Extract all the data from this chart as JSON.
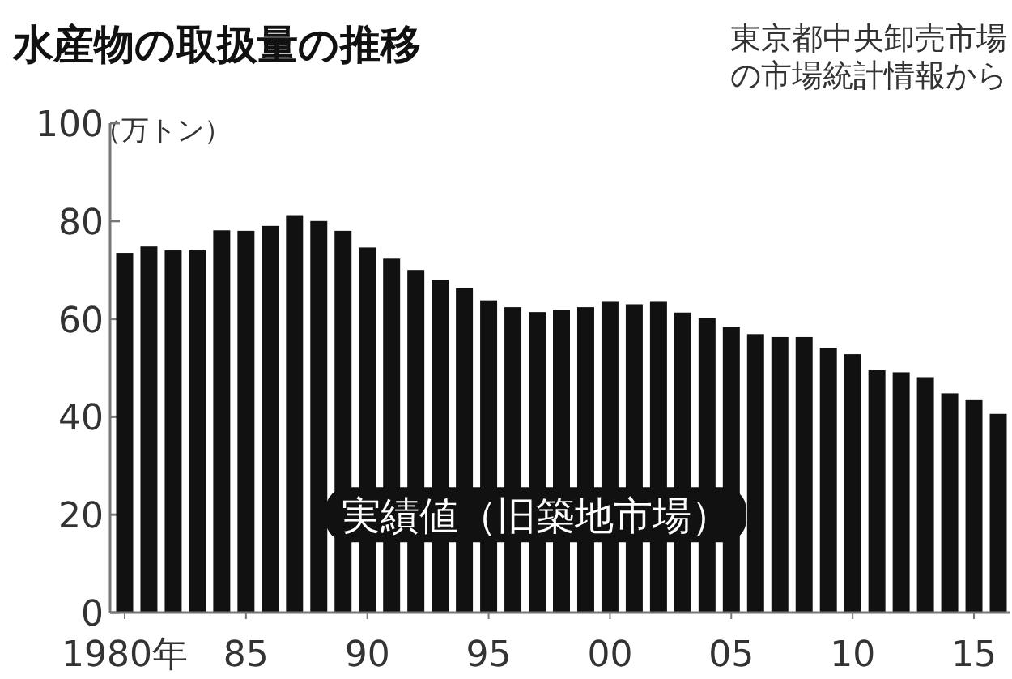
{
  "chart_data": {
    "type": "bar",
    "title": "水産物の取扱量の推移",
    "subtitle": "東京都中央卸売市場の市場統計情報から",
    "ylabel": "（万トン）",
    "color": "#111111",
    "grid": false,
    "annotations": [
      "実績値（旧築地市場）"
    ],
    "x": [
      1980,
      1981,
      1982,
      1983,
      1984,
      1985,
      1986,
      1987,
      1988,
      1989,
      1990,
      1991,
      1992,
      1993,
      1994,
      1995,
      1996,
      1997,
      1998,
      1999,
      2000,
      2001,
      2002,
      2003,
      2004,
      2005,
      2006,
      2007,
      2008,
      2009,
      2010,
      2011,
      2012,
      2013,
      2014,
      2015,
      2016
    ],
    "values": [
      73.5,
      74.8,
      74,
      74,
      78.1,
      78,
      79,
      81.2,
      80,
      78,
      74.6,
      72.3,
      70,
      68,
      66.3,
      63.8,
      62.4,
      61.4,
      61.8,
      62.4,
      63.5,
      63,
      63.5,
      61.3,
      60.2,
      58.3,
      56.9,
      56.3,
      56.3,
      54.1,
      52.8,
      49.5,
      49.1,
      48.1,
      44.8,
      43.4,
      40.6
    ],
    "xlim": [
      1979.4,
      2016.5
    ],
    "xticks": [
      {
        "value": 1980,
        "label": "1980年"
      },
      {
        "value": 1985,
        "label": "85"
      },
      {
        "value": 1990,
        "label": "90"
      },
      {
        "value": 1995,
        "label": "95"
      },
      {
        "value": 2000,
        "label": "00"
      },
      {
        "value": 2005,
        "label": "05"
      },
      {
        "value": 2010,
        "label": "10"
      },
      {
        "value": 2015,
        "label": "15"
      }
    ],
    "ylim": [
      0,
      100
    ],
    "yticks": [
      0,
      20,
      40,
      60,
      80,
      100
    ]
  }
}
